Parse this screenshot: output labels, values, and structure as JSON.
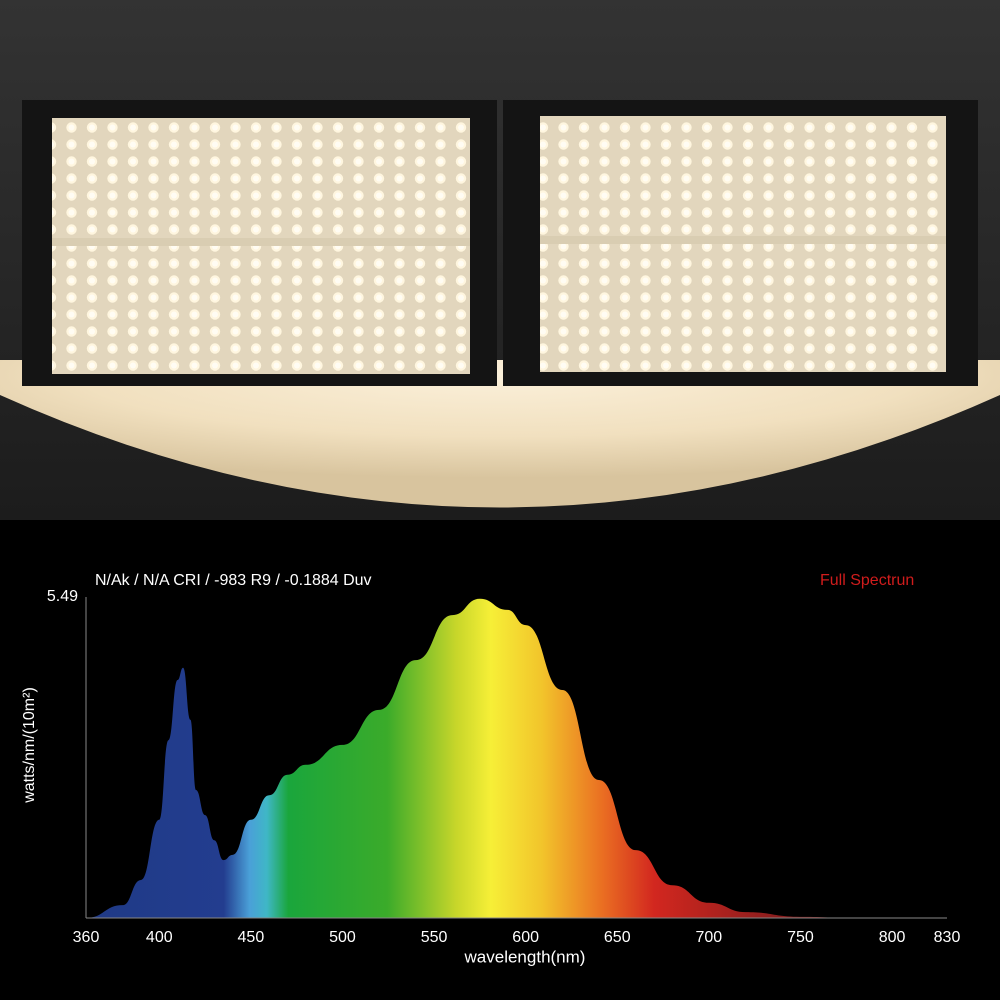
{
  "chart_data": {
    "type": "area",
    "title": "N/Ak / N/A CRI / -983 R9 / -0.1884 Duv",
    "annotation": "Full Spectrun",
    "y_label": "watts/nm/(10m²)",
    "x_label": "wavelength(nm)",
    "x": [
      360,
      380,
      390,
      400,
      405,
      410,
      413,
      417,
      420,
      425,
      430,
      435,
      440,
      450,
      460,
      470,
      480,
      500,
      520,
      540,
      560,
      575,
      590,
      600,
      620,
      640,
      660,
      680,
      700,
      720,
      750,
      780,
      830
    ],
    "values": [
      0,
      0.22,
      0.65,
      1.68,
      3.04,
      4.07,
      4.28,
      3.39,
      2.19,
      1.76,
      1.33,
      0.99,
      1.08,
      1.68,
      2.1,
      2.45,
      2.62,
      2.96,
      3.56,
      4.41,
      5.18,
      5.46,
      5.27,
      5.01,
      3.9,
      2.36,
      1.16,
      0.56,
      0.26,
      0.1,
      0.02,
      0,
      0
    ],
    "xlim": [
      360,
      830
    ],
    "ylim": [
      0,
      5.49
    ],
    "xticks": [
      360,
      400,
      450,
      500,
      550,
      600,
      650,
      700,
      750,
      800,
      830
    ],
    "yticks": [
      5.49
    ]
  }
}
